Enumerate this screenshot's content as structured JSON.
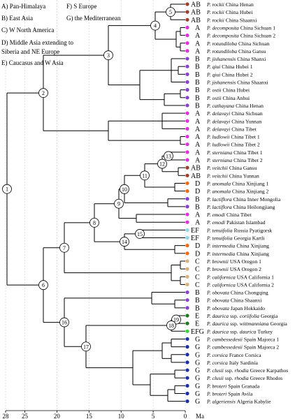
{
  "legend": [
    {
      "text": [
        "A) Pan-Himalaya"
      ]
    },
    {
      "text": [
        "B) East Asia"
      ]
    },
    {
      "text": [
        "C) W North America"
      ]
    },
    {
      "text": [
        "D) Middle Asia extending to",
        "Siberia and NE Europe"
      ]
    },
    {
      "text": [
        "E) Caucasus and W Asia"
      ]
    },
    {
      "text": [
        "F) S Europe"
      ]
    },
    {
      "text": [
        "G) the Mediterranean"
      ]
    }
  ],
  "area_colors": {
    "A": "#e030e0",
    "B": "#8a3fd1",
    "AB": "#a0402a",
    "C": "#d9b07a",
    "D": "#f06a10",
    "E": "#1f7a1f",
    "EF": "#8fd8ec",
    "EFG": "#39d239",
    "G": "#1a2fa8"
  },
  "leaves": [
    {
      "area": "AB",
      "taxon": "P. rockii",
      "locality": "China Henan"
    },
    {
      "area": "AB",
      "taxon": "P. rockii",
      "locality": "China Hubei"
    },
    {
      "area": "AB",
      "taxon": "P. rockii",
      "locality": "China Shaanxi"
    },
    {
      "area": "A",
      "taxon": "P. decomposita",
      "locality": "China Sichuan 1"
    },
    {
      "area": "A",
      "taxon": "P. decomposita",
      "locality": "China Sichuan 2"
    },
    {
      "area": "A",
      "taxon": "P. rotundiloba",
      "locality": "China Sichuan"
    },
    {
      "area": "A",
      "taxon": "P. rotundiloba",
      "locality": "China Gansu"
    },
    {
      "area": "B",
      "taxon": "P. jishanensis",
      "locality": "China Shanxi"
    },
    {
      "area": "B",
      "taxon": "P. qiui",
      "locality": "China Hubei 1"
    },
    {
      "area": "B",
      "taxon": "P. qiui",
      "locality": "China Hubei 2"
    },
    {
      "area": "B",
      "taxon": "P. jishanensis",
      "locality": "China Shaanxi"
    },
    {
      "area": "B",
      "taxon": "P. ostii",
      "locality": "China Hubei"
    },
    {
      "area": "B",
      "taxon": "P. ostii",
      "locality": "China Anhui"
    },
    {
      "area": "B",
      "taxon": "P. cathayana",
      "locality": "China Henan"
    },
    {
      "area": "A",
      "taxon": "P. delavayi",
      "locality": "China Sichuan"
    },
    {
      "area": "A",
      "taxon": "P. delavayi",
      "locality": "China Yunnan"
    },
    {
      "area": "A",
      "taxon": "P. delavayi",
      "locality": "China Tibet"
    },
    {
      "area": "A",
      "taxon": "P. ludlowii",
      "locality": "China Tibet 1"
    },
    {
      "area": "A",
      "taxon": "P. ludlowii",
      "locality": "China Tibet 2"
    },
    {
      "area": "A",
      "taxon": "P. sterniana",
      "locality": "China Tibet 1"
    },
    {
      "area": "A",
      "taxon": "P. sterniana",
      "locality": "China Tibet 2"
    },
    {
      "area": "AB",
      "taxon": "P. veitchii",
      "locality": "China Gansu"
    },
    {
      "area": "AB",
      "taxon": "P. veitchii",
      "locality": "China Yunnan"
    },
    {
      "area": "D",
      "taxon": "P. anomala",
      "locality": "China Xinjiang 1"
    },
    {
      "area": "D",
      "taxon": "P. anomala",
      "locality": "China Xinjiang 2"
    },
    {
      "area": "B",
      "taxon": "P. lactiflora",
      "locality": "China Inner Mongolia"
    },
    {
      "area": "B",
      "taxon": "P. lactiflora",
      "locality": "China Heilongjiang"
    },
    {
      "area": "A",
      "taxon": "P. emodi",
      "locality": "China Tibet"
    },
    {
      "area": "A",
      "taxon": "P. emodi",
      "locality": "Pakistan Islambad"
    },
    {
      "area": "EF",
      "taxon": "P. tenuifolia",
      "locality": "Russia Pyatigorsk"
    },
    {
      "area": "EF",
      "taxon": "P. tenuifolia",
      "locality": "Georgia Kartli"
    },
    {
      "area": "D",
      "taxon": "P. intermedia",
      "locality": "China Xinjiang"
    },
    {
      "area": "D",
      "taxon": "P. intermedia",
      "locality": "China Xinjiang"
    },
    {
      "area": "C",
      "taxon": "P. brownii",
      "locality": "USA Oregon 1"
    },
    {
      "area": "C",
      "taxon": "P. brownii",
      "locality": "USA Oregon 2"
    },
    {
      "area": "C",
      "taxon": "P. californica",
      "locality": "USA California 1"
    },
    {
      "area": "C",
      "taxon": "P. californica",
      "locality": "USA California 2"
    },
    {
      "area": "B",
      "taxon": "P. obovata",
      "locality": "China Chongqing"
    },
    {
      "area": "B",
      "taxon": "P. obovata",
      "locality": "China Shaanxi"
    },
    {
      "area": "B",
      "taxon": "P. obovata",
      "locality": "Japan Hokkaido"
    },
    {
      "area": "E",
      "taxon": "P. daurica",
      "rank": "ssp.",
      "infra": "coriifolia",
      "locality": "Georgia"
    },
    {
      "area": "E",
      "taxon": "P. daurica",
      "rank": "ssp.",
      "infra": "wittmanniana",
      "locality": "Georgia"
    },
    {
      "area": "EFG",
      "taxon": "P. daurica",
      "rank": "ssp.",
      "infra": "daurica",
      "locality": "Turkey"
    },
    {
      "area": "G",
      "taxon": "P. cambessedesii",
      "locality": "Spain Majorca 1"
    },
    {
      "area": "G",
      "taxon": "P. cambessedesii",
      "locality": "Spain Majorca 2"
    },
    {
      "area": "G",
      "taxon": "P. corsica",
      "locality": "France Corsica"
    },
    {
      "area": "G",
      "taxon": "P. corsica",
      "locality": "Italy Sardinia"
    },
    {
      "area": "G",
      "taxon": "P. clusii",
      "rank": "ssp.",
      "infra": "rhodia",
      "locality": "Greece Karpathos"
    },
    {
      "area": "G",
      "taxon": "P. clusii",
      "rank": "ssp.",
      "infra": "rhodia",
      "locality": "Greece Rhodos"
    },
    {
      "area": "G",
      "taxon": "P. broteri",
      "locality": "Spain Granada"
    },
    {
      "area": "G",
      "taxon": "P. broteri",
      "locality": "Spain Avila"
    },
    {
      "area": "G",
      "taxon": "P. algeriensis",
      "locality": "Algeria Kabylie"
    }
  ],
  "nodes": [
    1,
    2,
    3,
    4,
    5,
    6,
    7,
    8,
    9,
    10,
    11,
    12,
    13,
    14,
    15,
    16,
    17,
    18,
    19
  ],
  "axis": {
    "ticks": [
      28,
      25,
      20,
      15,
      10,
      5,
      0
    ],
    "unit": "Ma"
  }
}
